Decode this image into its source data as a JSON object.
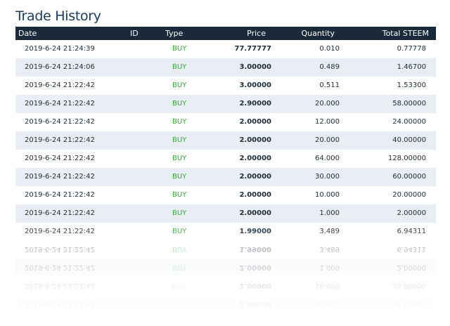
{
  "page": {
    "title": "Trade History"
  },
  "columns": {
    "date": "Date",
    "id": "ID",
    "type": "Type",
    "price": "Price",
    "quantity": "Quantity",
    "total": "Total STEEM"
  },
  "colors": {
    "header_bg": "#1b2a3a",
    "buy": "#3aa83a",
    "row_alt": "#e9eef4",
    "title": "#1a3a5c"
  },
  "rows": [
    {
      "date": "2019-6-24 21:24:39",
      "type": "BUY",
      "price": "77.77777",
      "quantity": "0.010",
      "total": "0.77778"
    },
    {
      "date": "2019-6-24 21:24:06",
      "type": "BUY",
      "price": "3.00000",
      "quantity": "0.489",
      "total": "1.46700"
    },
    {
      "date": "2019-6-24 21:22:42",
      "type": "BUY",
      "price": "3.00000",
      "quantity": "0.511",
      "total": "1.53300"
    },
    {
      "date": "2019-6-24 21:22:42",
      "type": "BUY",
      "price": "2.90000",
      "quantity": "20.000",
      "total": "58.00000"
    },
    {
      "date": "2019-6-24 21:22:42",
      "type": "BUY",
      "price": "2.00000",
      "quantity": "12.000",
      "total": "24.00000"
    },
    {
      "date": "2019-6-24 21:22:42",
      "type": "BUY",
      "price": "2.00000",
      "quantity": "20.000",
      "total": "40.00000"
    },
    {
      "date": "2019-6-24 21:22:42",
      "type": "BUY",
      "price": "2.00000",
      "quantity": "64.000",
      "total": "128.00000"
    },
    {
      "date": "2019-6-24 21:22:42",
      "type": "BUY",
      "price": "2.00000",
      "quantity": "30.000",
      "total": "60.00000"
    },
    {
      "date": "2019-6-24 21:22:42",
      "type": "BUY",
      "price": "2.00000",
      "quantity": "10.000",
      "total": "20.00000"
    },
    {
      "date": "2019-6-24 21:22:42",
      "type": "BUY",
      "price": "2.00000",
      "quantity": "1.000",
      "total": "2.00000"
    },
    {
      "date": "2019-6-24 21:22:42",
      "type": "BUY",
      "price": "1.99000",
      "quantity": "3.489",
      "total": "6.94311"
    }
  ]
}
